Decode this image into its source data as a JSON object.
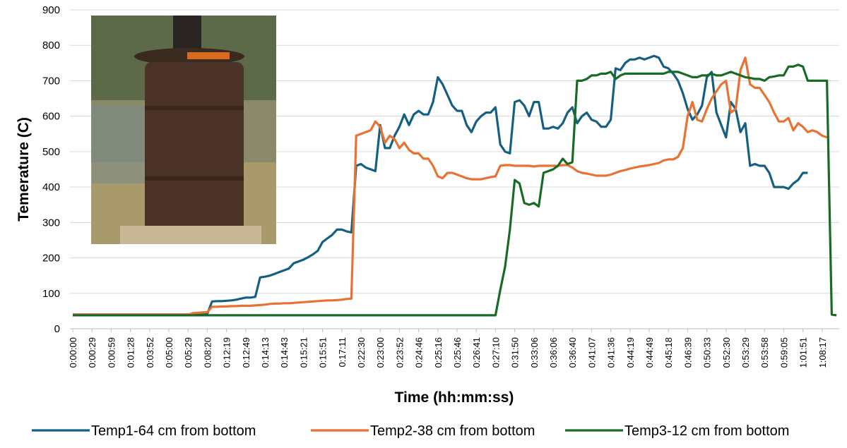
{
  "chart_data": {
    "type": "line",
    "x_label": "Time (hh:mm:ss)",
    "y_label": "Temerature (C)",
    "categories": [
      "0:00:00",
      null,
      null,
      null,
      "0:00:29",
      null,
      null,
      null,
      "0:00:59",
      null,
      null,
      null,
      "0:01:28",
      null,
      null,
      null,
      "0:03:52",
      null,
      null,
      null,
      "0:05:00",
      null,
      null,
      null,
      "0:05:29",
      null,
      null,
      null,
      "0:08:20",
      null,
      null,
      null,
      "0:12:19",
      null,
      null,
      null,
      "0:12:49",
      null,
      null,
      null,
      "0:14:13",
      null,
      null,
      null,
      "0:14:43",
      null,
      null,
      null,
      "0:15:21",
      null,
      null,
      null,
      "0:15:51",
      null,
      null,
      null,
      "0:17:11",
      null,
      null,
      null,
      "0:22:30",
      null,
      null,
      null,
      "0:23:00",
      null,
      null,
      null,
      "0:23:52",
      null,
      null,
      null,
      "0:24:46",
      null,
      null,
      null,
      "0:25:16",
      null,
      null,
      null,
      "0:25:46",
      null,
      null,
      null,
      "0:26:41",
      null,
      null,
      null,
      "0:27:10",
      null,
      null,
      null,
      "0:31:50",
      null,
      null,
      null,
      "0:33:06",
      null,
      null,
      null,
      "0:36:06",
      null,
      null,
      null,
      "0:36:40",
      null,
      null,
      null,
      "0:41:07",
      null,
      null,
      null,
      "0:41:36",
      null,
      null,
      null,
      "0:44:19",
      null,
      null,
      null,
      "0:44:49",
      null,
      null,
      null,
      "0:45:18",
      null,
      null,
      null,
      "0:46:39",
      null,
      null,
      null,
      "0:50:33",
      null,
      null,
      null,
      "0:52:30",
      null,
      null,
      null,
      "0:53:29",
      null,
      null,
      null,
      "0:53:58",
      null,
      null,
      null,
      "0:59:05",
      null,
      null,
      null,
      "1:01:51",
      null,
      null,
      null,
      "1:08:17",
      null,
      null,
      null
    ],
    "series": [
      {
        "name": "Temp1-64 cm from bottom",
        "color": "#156082",
        "values": [
          40,
          40,
          40,
          40,
          40,
          40,
          40,
          40,
          40,
          40,
          40,
          40,
          40,
          40,
          40,
          40,
          40,
          40,
          40,
          40,
          40,
          40,
          40,
          40,
          40,
          42,
          42,
          42,
          42,
          77,
          78,
          78,
          79,
          80,
          82,
          85,
          88,
          88,
          90,
          145,
          147,
          150,
          155,
          160,
          165,
          170,
          185,
          190,
          195,
          202,
          210,
          220,
          245,
          255,
          265,
          280,
          280,
          275,
          272,
          460,
          465,
          455,
          450,
          445,
          575,
          510,
          510,
          545,
          570,
          605,
          575,
          605,
          615,
          605,
          605,
          640,
          710,
          690,
          660,
          630,
          615,
          615,
          575,
          555,
          585,
          600,
          610,
          610,
          625,
          520,
          500,
          495,
          640,
          645,
          630,
          600,
          640,
          640,
          565,
          565,
          570,
          565,
          580,
          610,
          625,
          580,
          600,
          610,
          590,
          585,
          570,
          570,
          590,
          735,
          730,
          750,
          760,
          760,
          765,
          760,
          765,
          770,
          765,
          740,
          735,
          720,
          700,
          665,
          620,
          590,
          605,
          630,
          710,
          725,
          610,
          575,
          540,
          640,
          620,
          555,
          580,
          460,
          465,
          460,
          460,
          440,
          400,
          400,
          400,
          395,
          410,
          420,
          440,
          440,
          null,
          null,
          null,
          null,
          null,
          null
        ]
      },
      {
        "name": "Temp2-38 cm from bottom",
        "color": "#e97132",
        "values": [
          40,
          40,
          40,
          40,
          40,
          40,
          40,
          40,
          40,
          40,
          40,
          40,
          40,
          40,
          40,
          40,
          40,
          40,
          40,
          40,
          40,
          40,
          40,
          40,
          40,
          44,
          45,
          46,
          47,
          62,
          62,
          63,
          63,
          64,
          64,
          65,
          65,
          65,
          66,
          67,
          68,
          70,
          71,
          71,
          72,
          72,
          73,
          74,
          75,
          76,
          77,
          78,
          79,
          80,
          80,
          81,
          82,
          84,
          85,
          545,
          550,
          555,
          560,
          585,
          570,
          525,
          545,
          535,
          510,
          525,
          505,
          495,
          495,
          480,
          480,
          460,
          430,
          425,
          440,
          440,
          435,
          430,
          425,
          422,
          422,
          422,
          425,
          428,
          430,
          460,
          462,
          462,
          460,
          460,
          460,
          460,
          458,
          460,
          460,
          460,
          460,
          460,
          462,
          462,
          455,
          445,
          440,
          438,
          435,
          432,
          432,
          432,
          435,
          440,
          445,
          448,
          452,
          455,
          458,
          460,
          462,
          465,
          468,
          475,
          478,
          478,
          485,
          510,
          600,
          640,
          590,
          585,
          620,
          650,
          670,
          690,
          700,
          610,
          620,
          730,
          765,
          690,
          680,
          680,
          660,
          640,
          610,
          585,
          585,
          595,
          560,
          580,
          570,
          555,
          560,
          555,
          545,
          540,
          null,
          null
        ]
      },
      {
        "name": "Temp3-12 cm from bottom",
        "color": "#196b24",
        "values": [
          38,
          38,
          38,
          38,
          38,
          38,
          38,
          38,
          38,
          38,
          38,
          38,
          38,
          38,
          38,
          38,
          38,
          38,
          38,
          38,
          38,
          38,
          38,
          38,
          38,
          38,
          38,
          38,
          38,
          38,
          38,
          38,
          38,
          38,
          38,
          38,
          38,
          38,
          38,
          38,
          38,
          38,
          38,
          38,
          38,
          38,
          38,
          38,
          38,
          38,
          38,
          38,
          38,
          38,
          38,
          38,
          38,
          38,
          38,
          38,
          38,
          38,
          38,
          38,
          38,
          38,
          38,
          38,
          38,
          38,
          38,
          38,
          38,
          38,
          38,
          38,
          38,
          38,
          38,
          38,
          38,
          38,
          38,
          38,
          38,
          38,
          38,
          38,
          38,
          110,
          175,
          280,
          420,
          410,
          355,
          350,
          355,
          345,
          440,
          445,
          450,
          460,
          480,
          465,
          470,
          700,
          700,
          705,
          715,
          715,
          720,
          720,
          725,
          705,
          715,
          720,
          720,
          720,
          720,
          720,
          720,
          720,
          720,
          720,
          725,
          725,
          725,
          720,
          715,
          710,
          710,
          715,
          715,
          720,
          715,
          715,
          720,
          725,
          720,
          715,
          710,
          708,
          705,
          705,
          700,
          710,
          712,
          715,
          715,
          740,
          740,
          745,
          740,
          700,
          700,
          700,
          700,
          700,
          40,
          38
        ]
      }
    ],
    "ylim": [
      0,
      900
    ],
    "yticks": [
      0,
      100,
      200,
      300,
      400,
      500,
      600,
      700,
      800,
      900
    ],
    "grid": true,
    "legend": "bottom"
  }
}
